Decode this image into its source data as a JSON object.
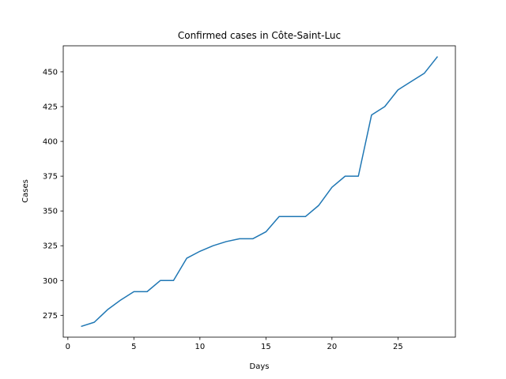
{
  "chart_data": {
    "type": "line",
    "title": "Confirmed cases in Côte-Saint-Luc",
    "xlabel": "Days",
    "ylabel": "Cases",
    "xlim": [
      -0.35,
      29.35
    ],
    "ylim": [
      259.3,
      468.7
    ],
    "xticks": [
      0,
      5,
      10,
      15,
      20,
      25
    ],
    "yticks": [
      275,
      300,
      325,
      350,
      375,
      400,
      425,
      450
    ],
    "grid": false,
    "series": [
      {
        "color": "#1f77b4",
        "x": [
          1,
          2,
          3,
          4,
          5,
          6,
          7,
          8,
          9,
          10,
          11,
          12,
          13,
          14,
          15,
          16,
          17,
          18,
          19,
          20,
          21,
          22,
          23,
          24,
          25,
          26,
          27,
          28
        ],
        "values": [
          267,
          270,
          279,
          286,
          292,
          292,
          300,
          300,
          316,
          321,
          325,
          328,
          330,
          330,
          335,
          346,
          346,
          346,
          354,
          367,
          375,
          375,
          419,
          425,
          437,
          443,
          449,
          461
        ]
      }
    ]
  }
}
